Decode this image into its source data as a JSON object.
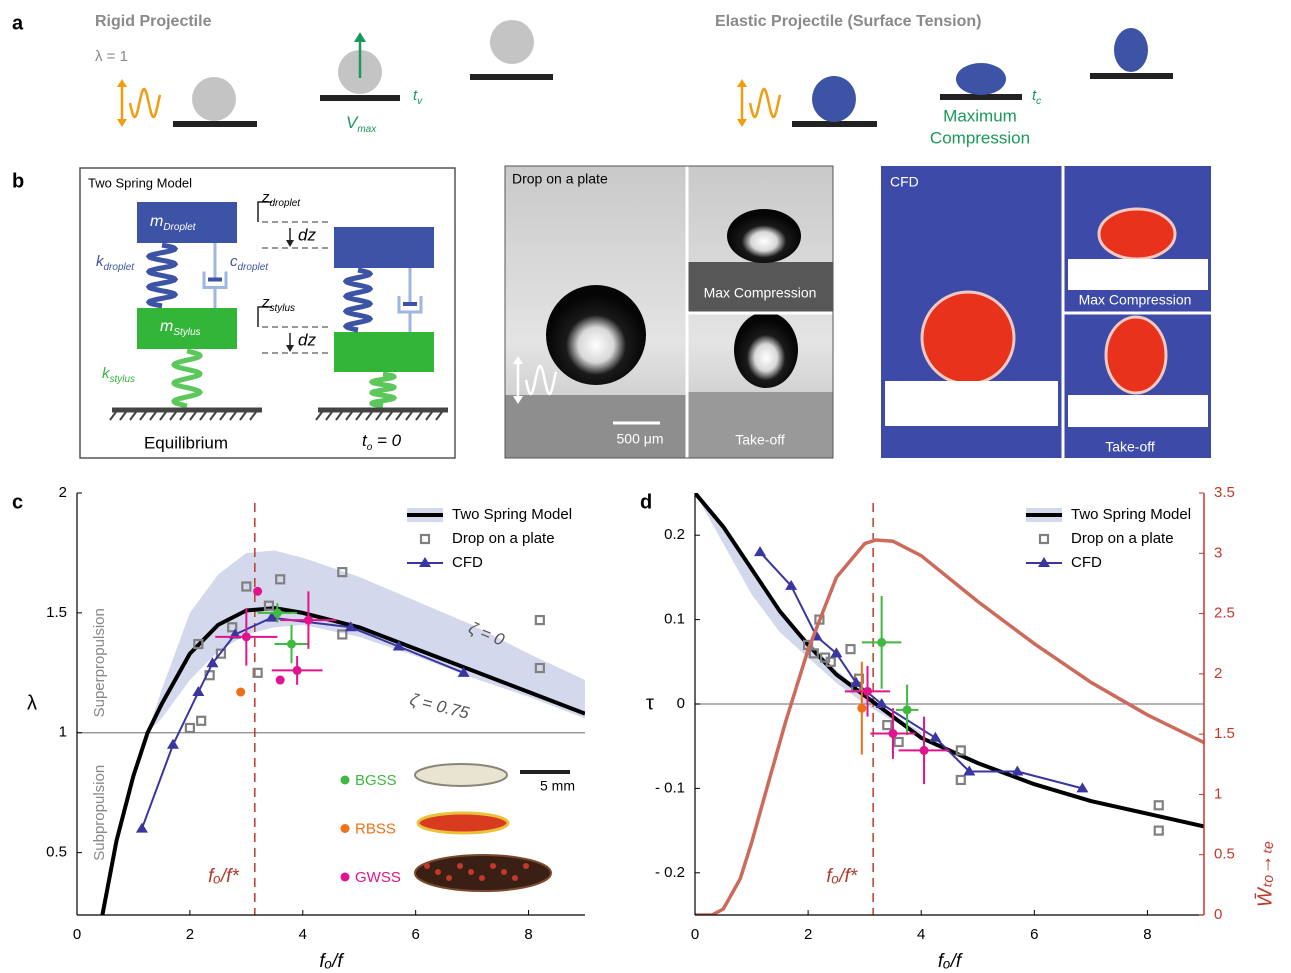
{
  "panel_a": {
    "label": "a",
    "rigid_title": "Rigid Projectile",
    "rigid_lambda": "λ = 1",
    "v_max": {
      "main": "V",
      "sub": "max"
    },
    "t_v": {
      "main": "t",
      "sub": "v"
    },
    "elastic_title": "Elastic Projectile (Surface Tension)",
    "t_c": {
      "main": "t",
      "sub": "c"
    },
    "max_compression": [
      "Maximum",
      "Compression"
    ]
  },
  "panel_b": {
    "label": "b",
    "model_title": "Two Spring Model",
    "m_droplet": {
      "main": "m",
      "sub": "Droplet"
    },
    "z_droplet": {
      "main": "z",
      "sub": "droplet"
    },
    "dz_top": "dz",
    "k_droplet": {
      "main": "k",
      "sub": "droplet"
    },
    "c_droplet": {
      "main": "c",
      "sub": "droplet"
    },
    "z_stylus": {
      "main": "z",
      "sub": "stylus"
    },
    "m_stylus": {
      "main": "m",
      "sub": "Stylus"
    },
    "dz_bottom": "dz",
    "k_stylus": {
      "main": "k",
      "sub": "stylus"
    },
    "equilibrium": "Equilibrium",
    "t_o": {
      "main": "t",
      "sub": "o",
      "rest": " = 0"
    },
    "photo_title": "Drop on a plate",
    "photo_max": "Max Compression",
    "photo_scale": "500 μm",
    "photo_takeoff": "Take-off",
    "cfd_title": "CFD",
    "cfd_max": "Max Compression",
    "cfd_takeoff": "Take-off"
  },
  "chart_data": [
    {
      "type": "line",
      "label": "c",
      "xlabel": "fₒ/f",
      "ylabel": "λ",
      "xlim": [
        0,
        9
      ],
      "xticks": [
        0,
        2,
        4,
        6,
        8
      ],
      "ylim": [
        0.24,
        2
      ],
      "yticks": [
        0.5,
        1,
        1.5,
        2
      ],
      "hline": 1,
      "vline": {
        "value": 3.15,
        "label": "fₒ/f*"
      },
      "legend": "upper right",
      "band": {
        "color": "#d4d8ec",
        "x": [
          1.25,
          1.5,
          2,
          2.5,
          3,
          3.5,
          4,
          5,
          6,
          7,
          8,
          9
        ],
        "upper": [
          1.0,
          1.18,
          1.5,
          1.66,
          1.75,
          1.76,
          1.73,
          1.65,
          1.55,
          1.45,
          1.33,
          1.22
        ],
        "lower": [
          1.0,
          1.06,
          1.22,
          1.34,
          1.41,
          1.44,
          1.45,
          1.4,
          1.32,
          1.23,
          1.15,
          1.06
        ]
      },
      "series": [
        {
          "name": "Two Spring Model",
          "type": "line",
          "color": "#000000",
          "x": [
            0.45,
            0.7,
            1,
            1.25,
            1.5,
            2,
            2.5,
            3,
            3.5,
            4,
            5,
            6,
            7,
            8,
            9
          ],
          "values": [
            0.24,
            0.55,
            0.82,
            1.0,
            1.12,
            1.33,
            1.45,
            1.51,
            1.52,
            1.5,
            1.44,
            1.35,
            1.26,
            1.17,
            1.08
          ]
        },
        {
          "name": "Drop on a plate",
          "type": "scatter",
          "marker": "square",
          "color": "#808080",
          "x": [
            2.0,
            2.2,
            2.15,
            2.35,
            2.55,
            2.75,
            3.0,
            3.4,
            3.2,
            3.6,
            4.7,
            4.7,
            8.2,
            8.2
          ],
          "values": [
            1.02,
            1.05,
            1.37,
            1.24,
            1.33,
            1.44,
            1.61,
            1.53,
            1.25,
            1.64,
            1.67,
            1.41,
            1.47,
            1.27
          ]
        },
        {
          "name": "CFD",
          "type": "line",
          "marker": "triangle",
          "color": "#3a35a0",
          "x": [
            1.15,
            1.7,
            2.15,
            2.4,
            2.8,
            3.45,
            4.85,
            5.7,
            6.85
          ],
          "values": [
            0.6,
            0.95,
            1.17,
            1.29,
            1.41,
            1.48,
            1.44,
            1.36,
            1.25
          ]
        }
      ],
      "species": [
        {
          "name": "BGSS",
          "color": "#3fb93f",
          "x": [
            3.55,
            3.8
          ],
          "values": [
            1.5,
            1.37
          ],
          "xerr": [
            0.35,
            0.3
          ],
          "yerr": [
            0.04,
            0.08
          ]
        },
        {
          "name": "RBSS",
          "color": "#f07018",
          "x": [
            2.9
          ],
          "values": [
            1.17
          ],
          "xerr": [
            null
          ],
          "yerr": [
            null
          ]
        },
        {
          "name": "GWSS",
          "color": "#e0148c",
          "x": [
            3.0,
            3.2,
            4.1,
            3.9,
            3.6
          ],
          "values": [
            1.4,
            1.59,
            1.47,
            1.26,
            1.22
          ],
          "xerr": [
            0.55,
            null,
            0.5,
            0.45,
            null
          ],
          "yerr": [
            0.12,
            null,
            0.12,
            0.06,
            null
          ]
        }
      ],
      "band_labels": [
        "ζ = 0",
        "ζ = 0.75"
      ],
      "region_labels": [
        "Superpropulsion",
        "Subpropulsion"
      ],
      "scale_bar": "5 mm"
    },
    {
      "type": "line",
      "label": "d",
      "xlabel": "fₒ/f",
      "ylabel": "τ",
      "y2label": "W̄ₜₒ→ₜₑ",
      "xlim": [
        0,
        9
      ],
      "xticks": [
        0,
        2,
        4,
        6,
        8
      ],
      "ylim": [
        -0.25,
        0.25
      ],
      "yticks": [
        {
          "value": -0.2,
          "label": "- 0.2"
        },
        {
          "value": -0.1,
          "label": "- 0.1"
        },
        0,
        0.1,
        0.2
      ],
      "y2lim": [
        0,
        3.5
      ],
      "y2ticks": [
        0,
        0.5,
        1,
        1.5,
        2,
        2.5,
        3,
        3.5
      ],
      "hline": 0,
      "vline": {
        "value": 3.15,
        "label": "fₒ/f*"
      },
      "legend": "upper right",
      "band": {
        "color": "#d4d8ec",
        "x": [
          0,
          0.5,
          1,
          1.5,
          2,
          2.5,
          3,
          3.5,
          4
        ],
        "upper": [
          0.25,
          0.21,
          0.16,
          0.11,
          0.075,
          0.04,
          0.012,
          -0.013,
          -0.033
        ],
        "lower": [
          0.25,
          0.19,
          0.13,
          0.085,
          0.055,
          0.025,
          0.0,
          -0.02,
          -0.038
        ]
      },
      "series": [
        {
          "name": "Two Spring Model",
          "type": "line",
          "color": "#000000",
          "x": [
            0,
            0.5,
            1,
            1.5,
            2,
            2.5,
            3,
            3.5,
            4,
            5,
            6,
            7,
            8,
            9
          ],
          "values": [
            0.25,
            0.21,
            0.16,
            0.11,
            0.07,
            0.035,
            0.01,
            -0.015,
            -0.04,
            -0.07,
            -0.095,
            -0.115,
            -0.13,
            -0.145
          ]
        },
        {
          "name": "Drop on a plate",
          "type": "scatter",
          "marker": "square",
          "color": "#808080",
          "x": [
            2.0,
            2.1,
            2.2,
            2.3,
            2.4,
            2.75,
            2.85,
            2.9,
            3.4,
            3.6,
            4.7,
            4.7,
            8.2,
            8.2
          ],
          "values": [
            0.07,
            0.06,
            0.1,
            0.055,
            0.05,
            0.065,
            0.02,
            0.03,
            -0.025,
            -0.045,
            -0.055,
            -0.09,
            -0.12,
            -0.15
          ]
        },
        {
          "name": "CFD",
          "type": "line",
          "marker": "triangle",
          "color": "#3a35a0",
          "x": [
            1.15,
            1.7,
            2.15,
            2.5,
            2.85,
            3.3,
            4.25,
            4.85,
            5.7,
            6.85
          ],
          "values": [
            0.18,
            0.14,
            0.08,
            0.06,
            0.025,
            0.0,
            -0.04,
            -0.08,
            -0.08,
            -0.1
          ]
        },
        {
          "type": "line",
          "axis": "y2",
          "color": "#cc6a5c",
          "x": [
            0,
            0.3,
            0.5,
            0.8,
            1,
            1.3,
            1.6,
            2,
            2.5,
            3,
            3.2,
            3.5,
            4,
            5,
            6,
            7,
            8,
            9
          ],
          "values": [
            0,
            0,
            0.05,
            0.3,
            0.6,
            1.1,
            1.6,
            2.2,
            2.8,
            3.08,
            3.11,
            3.1,
            2.98,
            2.6,
            2.25,
            1.93,
            1.66,
            1.43
          ]
        }
      ],
      "species": [
        {
          "color": "#3fb93f",
          "x": [
            3.3,
            3.75
          ],
          "values": [
            0.073,
            -0.007
          ],
          "xerr": [
            0.35,
            0.2
          ],
          "yerr": [
            0.055,
            0.03
          ]
        },
        {
          "color": "#f07018",
          "x": [
            2.95
          ],
          "values": [
            -0.005
          ],
          "xerr": [
            null
          ],
          "yerr": [
            0.055
          ]
        },
        {
          "color": "#e0148c",
          "x": [
            3.05,
            3.5,
            4.05
          ],
          "values": [
            0.015,
            -0.035,
            -0.055
          ],
          "xerr": [
            0.4,
            0.4,
            0.45
          ],
          "yerr": [
            0.03,
            0.03,
            0.04
          ]
        }
      ]
    }
  ]
}
